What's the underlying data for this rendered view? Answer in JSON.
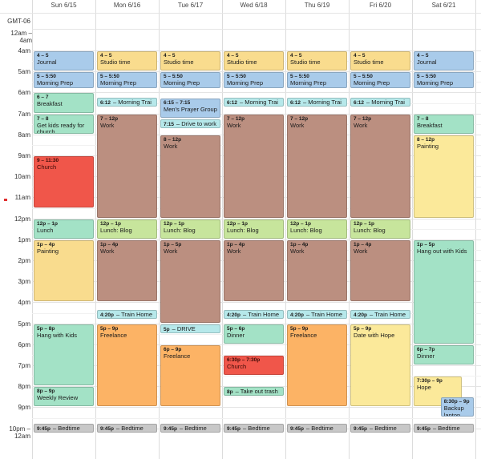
{
  "calendar": {
    "timezone": "GMT-06",
    "allday_label": "12am – 4am",
    "days": [
      "Sun 6/15",
      "Mon 6/16",
      "Tue 6/17",
      "Wed 6/18",
      "Thu 6/19",
      "Fri 6/20",
      "Sat 6/21"
    ],
    "hours": [
      {
        "label": "4am",
        "hour": 4
      },
      {
        "label": "5am",
        "hour": 5
      },
      {
        "label": "6am",
        "hour": 6
      },
      {
        "label": "7am",
        "hour": 7
      },
      {
        "label": "8am",
        "hour": 8
      },
      {
        "label": "9am",
        "hour": 9
      },
      {
        "label": "10am",
        "hour": 10
      },
      {
        "label": "11am",
        "hour": 11
      },
      {
        "label": "12pm",
        "hour": 12
      },
      {
        "label": "1pm",
        "hour": 13
      },
      {
        "label": "2pm",
        "hour": 14
      },
      {
        "label": "3pm",
        "hour": 15
      },
      {
        "label": "4pm",
        "hour": 16
      },
      {
        "label": "5pm",
        "hour": 17
      },
      {
        "label": "6pm",
        "hour": 18
      },
      {
        "label": "7pm",
        "hour": 19
      },
      {
        "label": "8pm",
        "hour": 20
      },
      {
        "label": "9pm",
        "hour": 21
      }
    ],
    "end_label": "10pm – 12am"
  },
  "colors": {
    "blue": "#a9cbea",
    "yellow": "#f9dc8e",
    "green": "#a3e2c6",
    "teal": "#b6e8ea",
    "brown": "#bb8f80",
    "red": "#f0564a",
    "lime": "#c7e59c",
    "orange": "#fcb365",
    "paleyellow": "#fbe99a",
    "gray": "#c8c8c8"
  },
  "events": [
    {
      "day": 0,
      "start": 4,
      "end": 5,
      "time": "4 – 5",
      "title": "Journal",
      "color": "blue"
    },
    {
      "day": 0,
      "start": 5,
      "end": 5.83,
      "time": "5 – 5:50",
      "title": "Morning Prep",
      "color": "blue"
    },
    {
      "day": 0,
      "start": 6,
      "end": 7,
      "time": "6 – 7",
      "title": "Breakfast",
      "color": "green"
    },
    {
      "day": 0,
      "start": 7,
      "end": 8,
      "time": "7 – 8",
      "title": "Get kids ready for church",
      "color": "green"
    },
    {
      "day": 0,
      "start": 9,
      "end": 11.5,
      "time": "9 – 11:30",
      "title": "Church",
      "color": "red"
    },
    {
      "day": 0,
      "start": 12,
      "end": 13,
      "time": "12p – 1p",
      "title": "Lunch",
      "color": "green"
    },
    {
      "day": 0,
      "start": 13,
      "end": 16,
      "time": "1p – 4p",
      "title": "Painting",
      "color": "yellow"
    },
    {
      "day": 0,
      "start": 17,
      "end": 20,
      "time": "5p – 8p",
      "title": "Hang with Kids",
      "color": "green"
    },
    {
      "day": 0,
      "start": 20,
      "end": 21,
      "time": "8p – 9p",
      "title": "Weekly Review",
      "color": "green"
    },
    {
      "day": 0,
      "start": 21.75,
      "end": 22.25,
      "time": "9:45p",
      "title": "– Bedtime",
      "color": "gray",
      "single": true
    },
    {
      "day": 1,
      "start": 4,
      "end": 5,
      "time": "4 – 5",
      "title": "Studio time",
      "color": "yellow"
    },
    {
      "day": 1,
      "start": 5,
      "end": 5.83,
      "time": "5 – 5:50",
      "title": "Morning Prep",
      "color": "blue"
    },
    {
      "day": 1,
      "start": 6.2,
      "end": 6.7,
      "time": "6:12",
      "title": "– Morning Trai",
      "color": "teal",
      "single": true
    },
    {
      "day": 1,
      "start": 7,
      "end": 12,
      "time": "7 – 12p",
      "title": "Work",
      "color": "brown"
    },
    {
      "day": 1,
      "start": 12,
      "end": 13,
      "time": "12p – 1p",
      "title": "Lunch: Blog",
      "color": "lime"
    },
    {
      "day": 1,
      "start": 13,
      "end": 16,
      "time": "1p – 4p",
      "title": "Work",
      "color": "brown"
    },
    {
      "day": 1,
      "start": 16.33,
      "end": 16.83,
      "time": "4:20p",
      "title": "– Train Home",
      "color": "teal",
      "single": true
    },
    {
      "day": 1,
      "start": 17,
      "end": 21,
      "time": "5p – 9p",
      "title": "Freelance",
      "color": "orange"
    },
    {
      "day": 1,
      "start": 21.75,
      "end": 22.25,
      "time": "9:45p",
      "title": "– Bedtime",
      "color": "gray",
      "single": true
    },
    {
      "day": 2,
      "start": 4,
      "end": 5,
      "time": "4 – 5",
      "title": "Studio time",
      "color": "yellow"
    },
    {
      "day": 2,
      "start": 5,
      "end": 5.83,
      "time": "5 – 5:50",
      "title": "Morning Prep",
      "color": "blue"
    },
    {
      "day": 2,
      "start": 6.25,
      "end": 7.25,
      "time": "6:15 – 7:15",
      "title": "Men's Prayer Group",
      "color": "blue"
    },
    {
      "day": 2,
      "start": 7.25,
      "end": 7.75,
      "time": "7:15",
      "title": "– Drive to work",
      "color": "teal",
      "single": true
    },
    {
      "day": 2,
      "start": 8,
      "end": 12,
      "time": "8 – 12p",
      "title": "Work",
      "color": "brown"
    },
    {
      "day": 2,
      "start": 12,
      "end": 13,
      "time": "12p – 1p",
      "title": "Lunch: Blog",
      "color": "lime"
    },
    {
      "day": 2,
      "start": 13,
      "end": 17,
      "time": "1p – 5p",
      "title": "Work",
      "color": "brown"
    },
    {
      "day": 2,
      "start": 17,
      "end": 17.5,
      "time": "5p",
      "title": "– DRIVE",
      "color": "teal",
      "single": true
    },
    {
      "day": 2,
      "start": 18,
      "end": 21,
      "time": "6p – 9p",
      "title": "Freelance",
      "color": "orange"
    },
    {
      "day": 2,
      "start": 21.75,
      "end": 22.25,
      "time": "9:45p",
      "title": "– Bedtime",
      "color": "gray",
      "single": true
    },
    {
      "day": 3,
      "start": 4,
      "end": 5,
      "time": "4 – 5",
      "title": "Studio time",
      "color": "yellow"
    },
    {
      "day": 3,
      "start": 5,
      "end": 5.83,
      "time": "5 – 5:50",
      "title": "Morning Prep",
      "color": "blue"
    },
    {
      "day": 3,
      "start": 6.2,
      "end": 6.7,
      "time": "6:12",
      "title": "– Morning Trai",
      "color": "teal",
      "single": true
    },
    {
      "day": 3,
      "start": 7,
      "end": 12,
      "time": "7 – 12p",
      "title": "Work",
      "color": "brown"
    },
    {
      "day": 3,
      "start": 12,
      "end": 13,
      "time": "12p – 1p",
      "title": "Lunch: Blog",
      "color": "lime"
    },
    {
      "day": 3,
      "start": 13,
      "end": 16,
      "time": "1p – 4p",
      "title": "Work",
      "color": "brown"
    },
    {
      "day": 3,
      "start": 16.33,
      "end": 16.83,
      "time": "4:20p",
      "title": "– Train Home",
      "color": "teal",
      "single": true
    },
    {
      "day": 3,
      "start": 17,
      "end": 18,
      "time": "5p – 6p",
      "title": "Dinner",
      "color": "green"
    },
    {
      "day": 3,
      "start": 18.5,
      "end": 19.5,
      "time": "6:30p – 7:30p",
      "title": "Church",
      "color": "red"
    },
    {
      "day": 3,
      "start": 20,
      "end": 20.5,
      "time": "8p",
      "title": "– Take out trash",
      "color": "green",
      "single": true
    },
    {
      "day": 3,
      "start": 21.75,
      "end": 22.25,
      "time": "9:45p",
      "title": "– Bedtime",
      "color": "gray",
      "single": true
    },
    {
      "day": 4,
      "start": 4,
      "end": 5,
      "time": "4 – 5",
      "title": "Studio time",
      "color": "yellow"
    },
    {
      "day": 4,
      "start": 5,
      "end": 5.83,
      "time": "5 – 5:50",
      "title": "Morning Prep",
      "color": "blue"
    },
    {
      "day": 4,
      "start": 6.2,
      "end": 6.7,
      "time": "6:12",
      "title": "– Morning Trai",
      "color": "teal",
      "single": true
    },
    {
      "day": 4,
      "start": 7,
      "end": 12,
      "time": "7 – 12p",
      "title": "Work",
      "color": "brown"
    },
    {
      "day": 4,
      "start": 12,
      "end": 13,
      "time": "12p – 1p",
      "title": "Lunch: Blog",
      "color": "lime"
    },
    {
      "day": 4,
      "start": 13,
      "end": 16,
      "time": "1p – 4p",
      "title": "Work",
      "color": "brown"
    },
    {
      "day": 4,
      "start": 16.33,
      "end": 16.83,
      "time": "4:20p",
      "title": "– Train Home",
      "color": "teal",
      "single": true
    },
    {
      "day": 4,
      "start": 17,
      "end": 21,
      "time": "5p – 9p",
      "title": "Freelance",
      "color": "orange"
    },
    {
      "day": 4,
      "start": 21.75,
      "end": 22.25,
      "time": "9:45p",
      "title": "– Bedtime",
      "color": "gray",
      "single": true
    },
    {
      "day": 5,
      "start": 4,
      "end": 5,
      "time": "4 – 5",
      "title": "Studio time",
      "color": "yellow"
    },
    {
      "day": 5,
      "start": 5,
      "end": 5.83,
      "time": "5 – 5:50",
      "title": "Morning Prep",
      "color": "blue"
    },
    {
      "day": 5,
      "start": 6.2,
      "end": 6.7,
      "time": "6:12",
      "title": "– Morning Trai",
      "color": "teal",
      "single": true
    },
    {
      "day": 5,
      "start": 7,
      "end": 12,
      "time": "7 – 12p",
      "title": "Work",
      "color": "brown"
    },
    {
      "day": 5,
      "start": 12,
      "end": 13,
      "time": "12p – 1p",
      "title": "Lunch: Blog",
      "color": "lime"
    },
    {
      "day": 5,
      "start": 13,
      "end": 16,
      "time": "1p – 4p",
      "title": "Work",
      "color": "brown"
    },
    {
      "day": 5,
      "start": 16.33,
      "end": 16.83,
      "time": "4:20p",
      "title": "– Train Home",
      "color": "teal",
      "single": true
    },
    {
      "day": 5,
      "start": 17,
      "end": 21,
      "time": "5p – 9p",
      "title": "Date with Hope",
      "color": "paleyellow"
    },
    {
      "day": 5,
      "start": 21.75,
      "end": 22.25,
      "time": "9:45p",
      "title": "– Bedtime",
      "color": "gray",
      "single": true
    },
    {
      "day": 6,
      "start": 4,
      "end": 5,
      "time": "4 – 5",
      "title": "Journal",
      "color": "blue"
    },
    {
      "day": 6,
      "start": 5,
      "end": 5.83,
      "time": "5 – 5:50",
      "title": "Morning Prep",
      "color": "blue"
    },
    {
      "day": 6,
      "start": 7,
      "end": 8,
      "time": "7 – 8",
      "title": "Breakfast",
      "color": "green"
    },
    {
      "day": 6,
      "start": 8,
      "end": 12,
      "time": "8 – 12p",
      "title": "Painting",
      "color": "paleyellow"
    },
    {
      "day": 6,
      "start": 13,
      "end": 18,
      "time": "1p – 5p",
      "title": "Hang out with Kids",
      "color": "green"
    },
    {
      "day": 6,
      "start": 18,
      "end": 19,
      "time": "6p – 7p",
      "title": "Dinner",
      "color": "green"
    },
    {
      "day": 6,
      "start": 19.5,
      "end": 21,
      "time": "7:30p – 9p",
      "title": "Hope",
      "color": "paleyellow",
      "w": 0.8
    },
    {
      "day": 6,
      "start": 20.5,
      "end": 21.5,
      "time": "8:30p – 9p",
      "title": "Backup laptop",
      "color": "blue",
      "x": 0.45,
      "w": 0.55
    },
    {
      "day": 6,
      "start": 21.75,
      "end": 22.25,
      "time": "9:45p",
      "title": "– Bedtime",
      "color": "gray",
      "single": true
    }
  ]
}
